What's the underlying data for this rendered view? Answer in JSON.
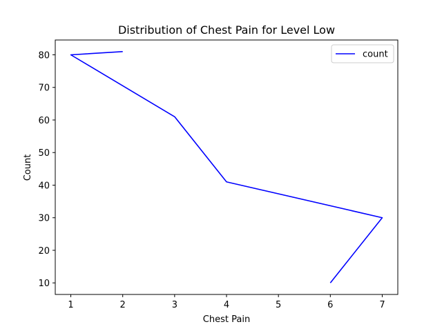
{
  "chart_data": {
    "type": "line",
    "title": "Distribution of Chest Pain for Level Low",
    "xlabel": "Chest Pain",
    "ylabel": "Count",
    "xlim": [
      0.7,
      7.3
    ],
    "ylim": [
      6.45,
      84.55
    ],
    "xticks": [
      1,
      2,
      3,
      4,
      5,
      6,
      7
    ],
    "yticks": [
      10,
      20,
      30,
      40,
      50,
      60,
      70,
      80
    ],
    "grid": false,
    "legend_position": "top-right",
    "series": [
      {
        "name": "count",
        "color": "#0000ff",
        "x": [
          2,
          1,
          3,
          4,
          7,
          6
        ],
        "y": [
          81,
          80,
          61,
          41,
          30,
          10
        ]
      }
    ]
  }
}
